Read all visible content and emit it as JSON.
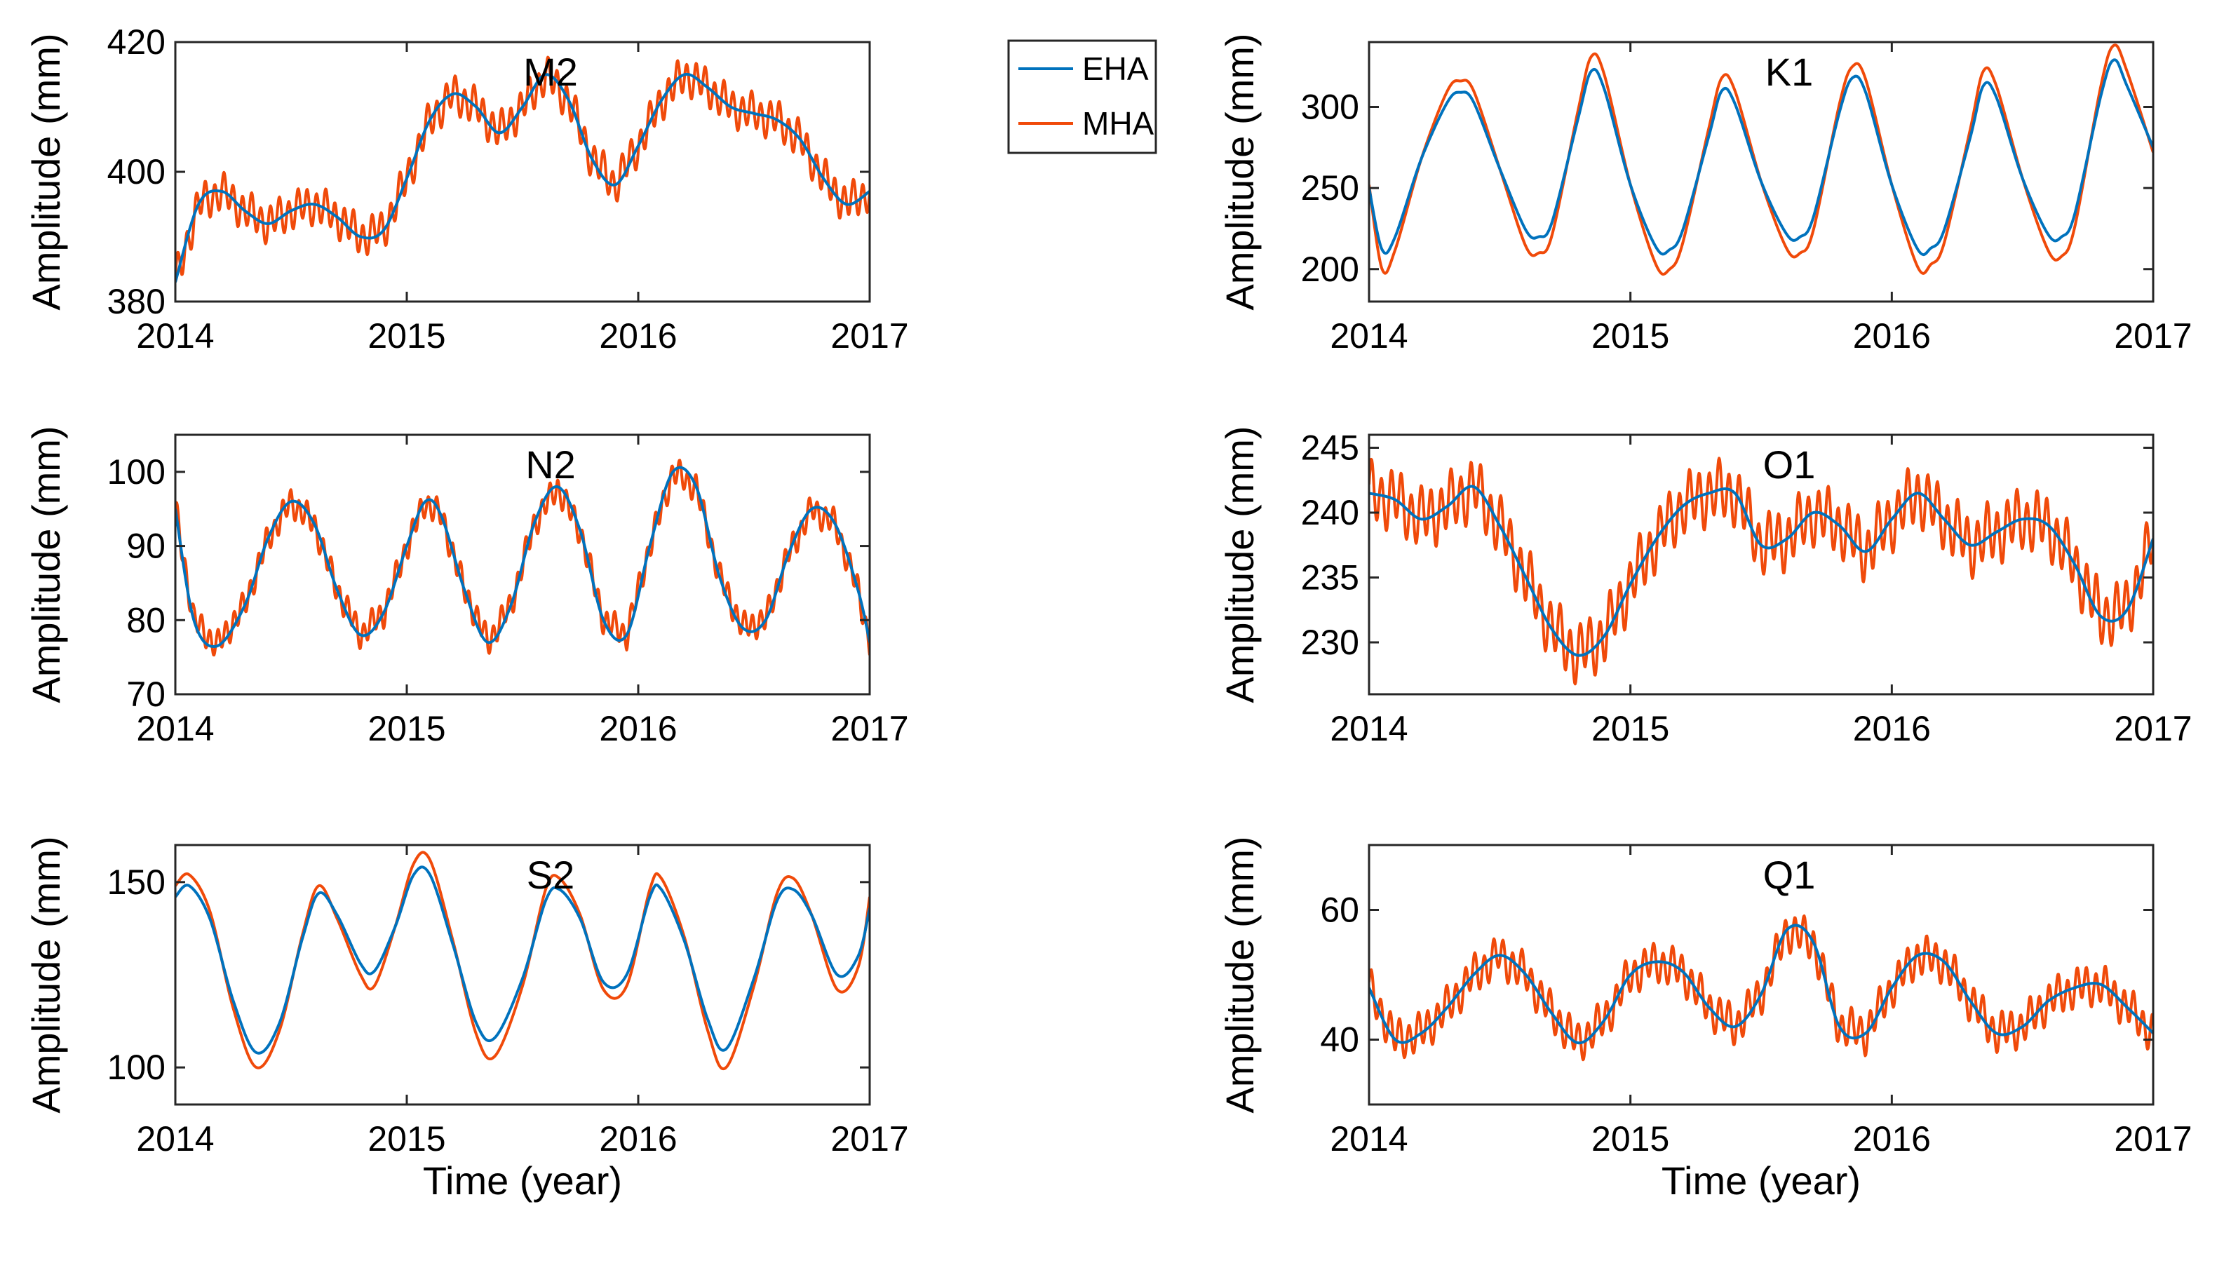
{
  "figure": {
    "xlabel": "Time (year)",
    "legend": [
      {
        "name": "EHA",
        "color": "#0072BD"
      },
      {
        "name": "MHA",
        "color": "#F04A0A"
      }
    ]
  },
  "chart_data": [
    {
      "type": "line",
      "title": "M2",
      "ylabel": "Amplitude (mm)",
      "xlabel": "",
      "xlim": [
        2014,
        2017
      ],
      "ylim": [
        380,
        420
      ],
      "xticks": [
        "2014",
        "2015",
        "2016",
        "2017"
      ],
      "yticks": [
        "380",
        "400",
        "420"
      ],
      "noise_amp": 2.5,
      "noise_period": 0.04,
      "series": [
        {
          "name": "EHA",
          "color": "#0072BD",
          "x": [
            2014.0,
            2014.1,
            2014.2,
            2014.3,
            2014.4,
            2014.5,
            2014.6,
            2014.7,
            2014.8,
            2014.9,
            2015.0,
            2015.1,
            2015.2,
            2015.3,
            2015.4,
            2015.5,
            2015.6,
            2015.7,
            2015.8,
            2015.9,
            2016.0,
            2016.1,
            2016.2,
            2016.3,
            2016.4,
            2016.5,
            2016.6,
            2016.7,
            2016.8,
            2016.9,
            2017.0
          ],
          "y": [
            383,
            395,
            397,
            394,
            392,
            394,
            395,
            393,
            390,
            391,
            399,
            408,
            412,
            410,
            406,
            410,
            415,
            411,
            402,
            398,
            404,
            411,
            415,
            413,
            410,
            409,
            408,
            405,
            399,
            395,
            397
          ]
        }
      ]
    },
    {
      "type": "line",
      "title": "K1",
      "ylabel": "Amplitude (mm)",
      "xlabel": "",
      "xlim": [
        2014,
        2017
      ],
      "ylim": [
        180,
        340
      ],
      "xticks": [
        "2014",
        "2015",
        "2016",
        "2017"
      ],
      "yticks": [
        "200",
        "250",
        "300"
      ],
      "noise_amp": 0,
      "noise_period": 0.04,
      "series": [
        {
          "name": "EHA",
          "color": "#0072BD",
          "x": [
            2014.0,
            2014.05,
            2014.1,
            2014.2,
            2014.3,
            2014.35,
            2014.4,
            2014.5,
            2014.6,
            2014.65,
            2014.7,
            2014.8,
            2014.85,
            2014.9,
            2015.0,
            2015.1,
            2015.15,
            2015.2,
            2015.3,
            2015.35,
            2015.4,
            2015.5,
            2015.6,
            2015.65,
            2015.7,
            2015.8,
            2015.85,
            2015.9,
            2016.0,
            2016.1,
            2016.15,
            2016.2,
            2016.3,
            2016.35,
            2016.4,
            2016.5,
            2016.6,
            2016.65,
            2016.7,
            2016.8,
            2016.85,
            2016.9,
            2017.0
          ],
          "y": [
            250,
            212,
            220,
            268,
            303,
            309,
            303,
            262,
            224,
            220,
            229,
            293,
            322,
            311,
            252,
            213,
            212,
            224,
            282,
            310,
            302,
            254,
            221,
            220,
            232,
            297,
            318,
            309,
            252,
            212,
            213,
            224,
            281,
            313,
            306,
            256,
            221,
            220,
            234,
            307,
            329,
            313,
            275
          ]
        },
        {
          "name": "MHA",
          "color": "#F04A0A",
          "x": [
            2014.0,
            2014.05,
            2014.1,
            2014.2,
            2014.3,
            2014.35,
            2014.4,
            2014.5,
            2014.6,
            2014.65,
            2014.7,
            2014.8,
            2014.85,
            2014.9,
            2015.0,
            2015.1,
            2015.15,
            2015.2,
            2015.3,
            2015.35,
            2015.4,
            2015.5,
            2015.6,
            2015.65,
            2015.7,
            2015.8,
            2015.85,
            2015.9,
            2016.0,
            2016.1,
            2016.15,
            2016.2,
            2016.3,
            2016.35,
            2016.4,
            2016.5,
            2016.6,
            2016.65,
            2016.7,
            2016.8,
            2016.85,
            2016.9,
            2017.0
          ],
          "y": [
            252,
            200,
            212,
            268,
            310,
            316,
            310,
            262,
            214,
            210,
            221,
            298,
            331,
            320,
            252,
            202,
            200,
            216,
            287,
            318,
            310,
            254,
            212,
            210,
            224,
            302,
            325,
            317,
            252,
            201,
            203,
            216,
            286,
            322,
            313,
            256,
            211,
            208,
            226,
            313,
            338,
            322,
            272
          ]
        }
      ]
    },
    {
      "type": "line",
      "title": "N2",
      "ylabel": "Amplitude (mm)",
      "xlabel": "",
      "xlim": [
        2014,
        2017
      ],
      "ylim": [
        70,
        105
      ],
      "xticks": [
        "2014",
        "2015",
        "2016",
        "2017"
      ],
      "yticks": [
        "70",
        "80",
        "90",
        "100"
      ],
      "noise_amp": 1.6,
      "noise_period": 0.035,
      "series": [
        {
          "name": "EHA",
          "color": "#0072BD",
          "x": [
            2014.0,
            2014.08,
            2014.18,
            2014.3,
            2014.4,
            2014.5,
            2014.6,
            2014.7,
            2014.8,
            2014.9,
            2015.0,
            2015.08,
            2015.15,
            2015.25,
            2015.35,
            2015.45,
            2015.55,
            2015.65,
            2015.75,
            2015.85,
            2015.95,
            2016.05,
            2016.15,
            2016.25,
            2016.35,
            2016.45,
            2016.55,
            2016.65,
            2016.75,
            2016.85,
            2016.95,
            2017.0
          ],
          "y": [
            95,
            80,
            76.5,
            82,
            91,
            96,
            93,
            84,
            78,
            81,
            90,
            96,
            94,
            84,
            77,
            82,
            93,
            98,
            92,
            80,
            78,
            90,
            100,
            98,
            86,
            79,
            80,
            89,
            95,
            93,
            84,
            77
          ]
        }
      ]
    },
    {
      "type": "line",
      "title": "O1",
      "ylabel": "Amplitude (mm)",
      "xlabel": "",
      "xlim": [
        2014,
        2017
      ],
      "ylim": [
        226,
        246
      ],
      "xticks": [
        "2014",
        "2015",
        "2016",
        "2017"
      ],
      "yticks": [
        "230",
        "235",
        "240",
        "245"
      ],
      "noise_amp": 2.0,
      "noise_period": 0.038,
      "series": [
        {
          "name": "EHA",
          "color": "#0072BD",
          "x": [
            2014.0,
            2014.1,
            2014.2,
            2014.3,
            2014.4,
            2014.5,
            2014.6,
            2014.7,
            2014.8,
            2014.9,
            2015.0,
            2015.1,
            2015.2,
            2015.3,
            2015.4,
            2015.5,
            2015.6,
            2015.7,
            2015.8,
            2015.9,
            2016.0,
            2016.1,
            2016.2,
            2016.3,
            2016.4,
            2016.5,
            2016.6,
            2016.7,
            2016.8,
            2016.9,
            2017.0
          ],
          "y": [
            241.5,
            241,
            239.5,
            240.5,
            242,
            239,
            235,
            231,
            229,
            230.5,
            234.5,
            238,
            240.5,
            241.5,
            241.5,
            237.5,
            238,
            240,
            239,
            237,
            239.5,
            241.5,
            239.5,
            237.5,
            238.5,
            239.5,
            239,
            236,
            232,
            232.5,
            238
          ]
        }
      ]
    },
    {
      "type": "line",
      "title": "S2",
      "ylabel": "Amplitude (mm)",
      "xlabel": "Time (year)",
      "xlim": [
        2014,
        2017
      ],
      "ylim": [
        90,
        160
      ],
      "xticks": [
        "2014",
        "2015",
        "2016",
        "2017"
      ],
      "yticks": [
        "100",
        "150"
      ],
      "noise_amp": 0.8,
      "noise_period": 0.05,
      "series": [
        {
          "name": "EHA",
          "color": "#0072BD",
          "x": [
            2014.0,
            2014.06,
            2014.15,
            2014.25,
            2014.35,
            2014.45,
            2014.55,
            2014.62,
            2014.7,
            2014.8,
            2014.86,
            2014.95,
            2015.03,
            2015.1,
            2015.2,
            2015.3,
            2015.38,
            2015.5,
            2015.6,
            2015.66,
            2015.75,
            2015.85,
            2015.95,
            2016.05,
            2016.1,
            2016.2,
            2016.3,
            2016.38,
            2016.5,
            2016.6,
            2016.67,
            2016.75,
            2016.86,
            2016.95,
            2017.0
          ],
          "y": [
            146,
            149,
            140,
            118,
            104,
            112,
            135,
            147,
            141,
            128,
            126,
            138,
            152,
            152,
            133,
            112,
            108,
            124,
            145,
            148,
            140,
            123,
            125,
            146,
            148,
            134,
            113,
            105,
            124,
            145,
            148,
            141,
            125,
            130,
            143
          ]
        },
        {
          "name": "MHA",
          "color": "#F04A0A",
          "x": [
            2014.0,
            2014.06,
            2014.15,
            2014.25,
            2014.35,
            2014.45,
            2014.55,
            2014.62,
            2014.7,
            2014.8,
            2014.86,
            2014.95,
            2015.03,
            2015.1,
            2015.2,
            2015.3,
            2015.38,
            2015.5,
            2015.6,
            2015.66,
            2015.75,
            2015.85,
            2015.95,
            2016.05,
            2016.1,
            2016.2,
            2016.3,
            2016.38,
            2016.5,
            2016.6,
            2016.67,
            2016.75,
            2016.86,
            2016.95,
            2017.0
          ],
          "y": [
            149,
            152,
            142,
            116,
            100,
            110,
            136,
            149,
            140,
            125,
            122,
            138,
            155,
            156,
            134,
            109,
            103,
            122,
            148,
            151,
            141,
            121,
            122,
            148,
            151,
            135,
            110,
            100,
            122,
            147,
            151,
            141,
            121,
            127,
            146
          ]
        }
      ]
    },
    {
      "type": "line",
      "title": "Q1",
      "ylabel": "Amplitude (mm)",
      "xlabel": "Time (year)",
      "xlim": [
        2014,
        2017
      ],
      "ylim": [
        30,
        70
      ],
      "xticks": [
        "2014",
        "2015",
        "2016",
        "2017"
      ],
      "yticks": [
        "40",
        "60"
      ],
      "noise_amp": 2.6,
      "noise_period": 0.036,
      "series": [
        {
          "name": "EHA",
          "color": "#0072BD",
          "x": [
            2014.0,
            2014.1,
            2014.2,
            2014.3,
            2014.4,
            2014.5,
            2014.6,
            2014.7,
            2014.8,
            2014.9,
            2015.0,
            2015.1,
            2015.2,
            2015.3,
            2015.4,
            2015.5,
            2015.6,
            2015.7,
            2015.8,
            2015.9,
            2016.0,
            2016.1,
            2016.2,
            2016.3,
            2016.4,
            2016.5,
            2016.6,
            2016.7,
            2016.8,
            2016.9,
            2017.0
          ],
          "y": [
            48,
            40,
            41,
            45,
            50,
            53,
            50,
            44,
            39.5,
            43,
            50,
            52,
            50.5,
            45,
            42,
            47,
            57,
            55,
            42,
            41,
            48,
            53,
            52,
            46,
            41,
            42,
            46,
            48,
            48.5,
            45,
            41
          ]
        }
      ]
    }
  ]
}
